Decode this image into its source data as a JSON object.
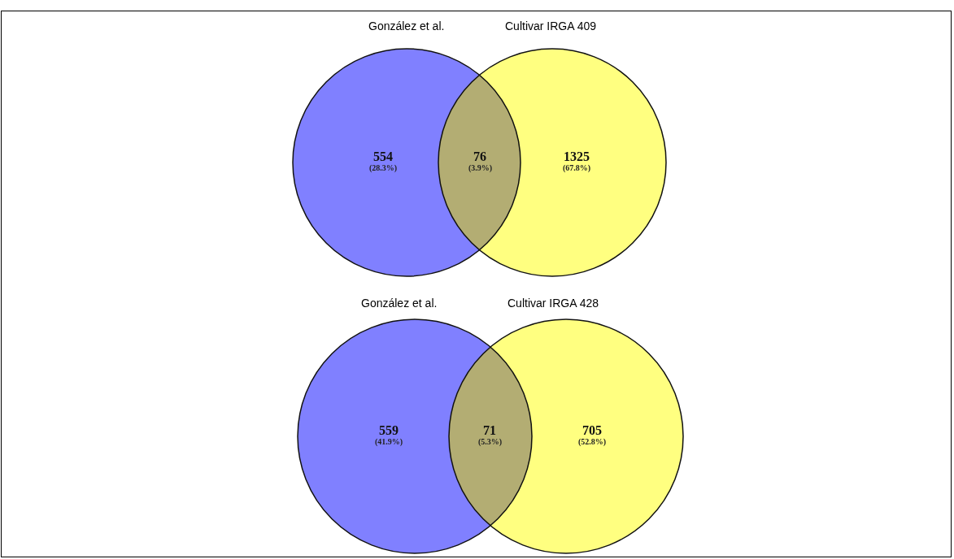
{
  "chart_data": [
    {
      "type": "other",
      "annotations": [
        "González et al.",
        "Cultivar IRGA 409",
        "(28.3%)",
        "(3.9%)",
        "(67.8%)"
      ],
      "categories": [
        null,
        null,
        null
      ],
      "values": [
        554,
        76,
        1325
      ],
      "data_labels": true,
      "colors": [
        "#8080ff",
        "#b3ad73",
        "#ffff80"
      ]
    },
    {
      "type": "other",
      "annotations": [
        "González et al.",
        "Cultivar IRGA 428",
        "(41.9%)",
        "(5.3%)",
        "(52.8%)"
      ],
      "categories": [
        null,
        null,
        null
      ],
      "values": [
        559,
        71,
        705
      ],
      "data_labels": true,
      "colors": [
        "#8080ff",
        "#b3ad73",
        "#ffff80"
      ]
    }
  ]
}
